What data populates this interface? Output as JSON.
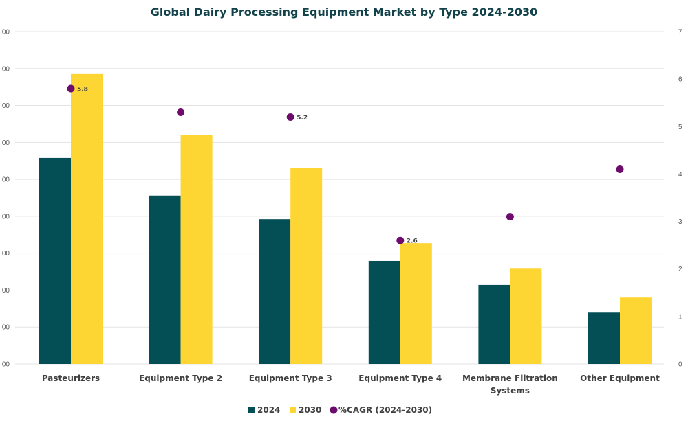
{
  "chart_data": {
    "type": "bar",
    "title": "Global Dairy Processing Equipment Market by Type 2024-2030",
    "categories": [
      "Pasteurizers",
      "Equipment Type 2",
      "Equipment Type 3",
      "Equipment Type 4",
      "Membrane Filtration Systems",
      "Other Equipment"
    ],
    "category_lines": [
      [
        "Pasteurizers"
      ],
      [
        "Equipment Type 2"
      ],
      [
        "Equipment Type 3"
      ],
      [
        "Equipment Type 4"
      ],
      [
        "Membrane Filtration",
        "Systems"
      ],
      [
        "Other Equipment"
      ]
    ],
    "series": [
      {
        "name": "2024",
        "type": "bar",
        "axis": "left",
        "color": "#034f55",
        "values": [
          5.58,
          4.56,
          3.92,
          2.79,
          2.14,
          1.39
        ]
      },
      {
        "name": "2030",
        "type": "bar",
        "axis": "left",
        "color": "#fdd633",
        "values": [
          7.85,
          6.21,
          5.3,
          3.27,
          2.58,
          1.8
        ]
      },
      {
        "name": "%CAGR (2024-2030)",
        "type": "scatter",
        "axis": "right",
        "color": "#6e0c6e",
        "values": [
          5.8,
          5.3,
          5.2,
          2.6,
          3.1,
          4.1
        ],
        "data_labels": [
          "5.8",
          "",
          "5.2",
          "2.6",
          "",
          ""
        ]
      }
    ],
    "left_axis": {
      "ylim": [
        0,
        9
      ],
      "tick_labels": [
        ".00",
        ".00",
        ".00",
        ".00",
        ".00",
        ".00",
        ".00",
        ".00",
        ".00",
        ".00"
      ],
      "note": "left tick labels are truncated in the image"
    },
    "right_axis": {
      "ylim": [
        0,
        7
      ],
      "tick_labels": [
        "0",
        "1",
        "2",
        "3",
        "4",
        "5",
        "6",
        "7"
      ]
    },
    "xlabel": "",
    "ylabel": "",
    "grid": true,
    "legend_position": "bottom"
  }
}
